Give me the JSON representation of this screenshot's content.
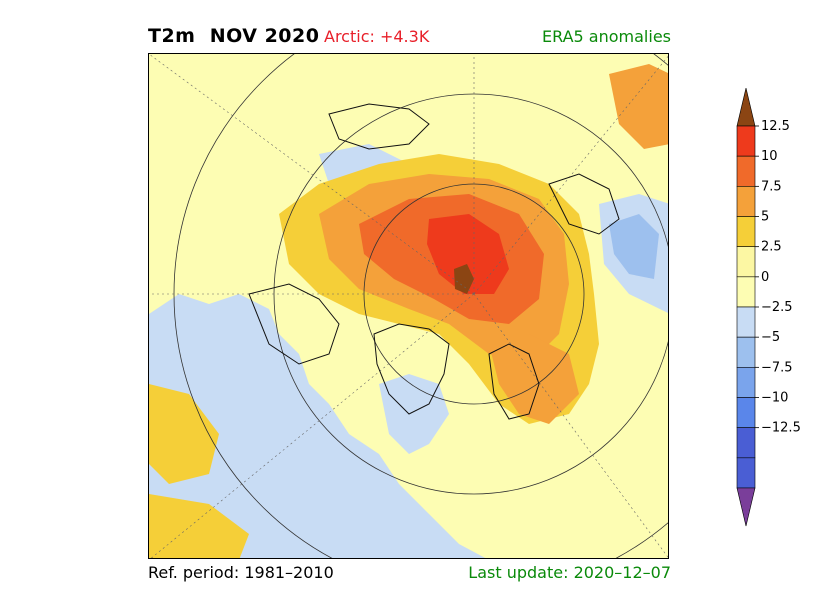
{
  "title": {
    "variable": "T2m",
    "period": "NOV 2020",
    "arctic": "Arctic: +4.3K",
    "source": "ERA5 anomalies"
  },
  "footer": {
    "ref_period": "Ref. period: 1981–2010",
    "last_update": "Last update: 2020–12–07"
  },
  "colorbar": {
    "levels": [
      {
        "label": "12.5",
        "color": "#ee3a1c"
      },
      {
        "label": "10",
        "color": "#f06a2a"
      },
      {
        "label": "7.5",
        "color": "#f4a13a"
      },
      {
        "label": "5",
        "color": "#f5cf38"
      },
      {
        "label": "2.5",
        "color": "#fcf7a3"
      },
      {
        "label": "0",
        "color": "#c8dcf4"
      },
      {
        "label": "−2.5",
        "color": "#9dc0ee"
      },
      {
        "label": "−5",
        "color": "#7aa4ec"
      },
      {
        "label": "−7.5",
        "color": "#5a86ea"
      },
      {
        "label": "−10",
        "color": "#4a5ed4"
      },
      {
        "label": "−12.5",
        "color": "#7a3e9a"
      }
    ],
    "top_cap_color": "#8b4513",
    "bottom_cap_color": "#7a3e9a"
  },
  "map_colors": {
    "ocean_neutral": "#fdfdb3",
    "cool": "#c8dcf4",
    "warm1": "#f5cf38",
    "warm2": "#f4a13a",
    "warm3": "#f06a2a",
    "warm4": "#ee3a1c",
    "warm5": "#8b4513"
  }
}
